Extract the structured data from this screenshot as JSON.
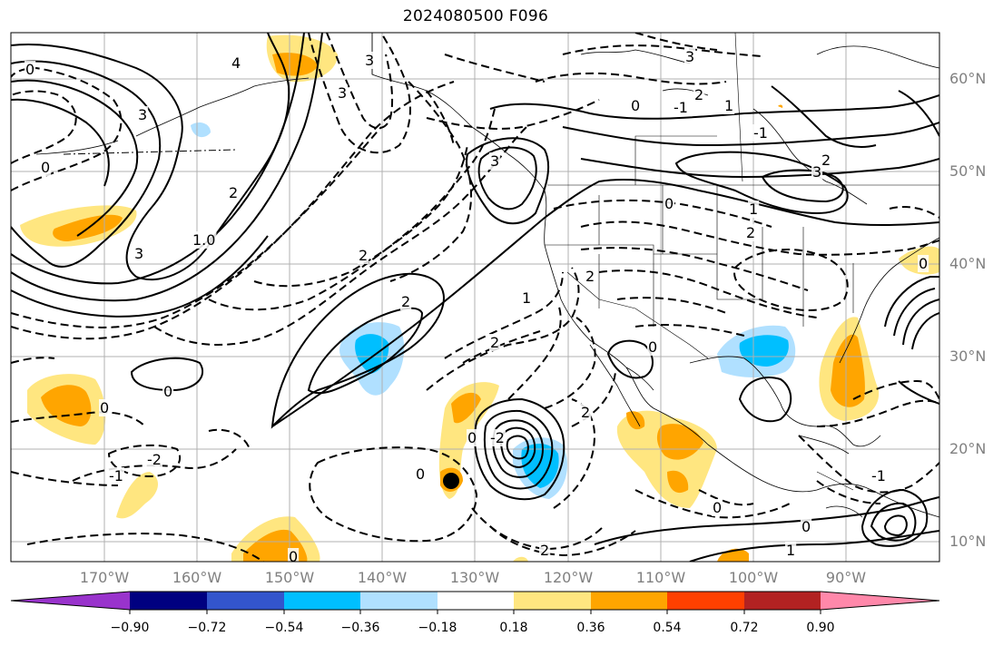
{
  "title": "2024080500 F096",
  "lat_labels": [
    "60°N",
    "50°N",
    "40°N",
    "30°N",
    "20°N",
    "10°N"
  ],
  "lon_labels": [
    "170°W",
    "160°W",
    "150°W",
    "140°W",
    "130°W",
    "120°W",
    "110°W",
    "100°W",
    "90°W"
  ],
  "colorbar": {
    "tick_labels": [
      "−0.90",
      "−0.72",
      "−0.54",
      "−0.36",
      "−0.18",
      "0.18",
      "0.36",
      "0.54",
      "0.72",
      "0.90"
    ],
    "colors": [
      "#9933cc",
      "#000080",
      "#3355cc",
      "#00bfff",
      "#b0e0ff",
      "#ffffff",
      "#ffe680",
      "#ffa500",
      "#ff4000",
      "#b22222",
      "#ff88aa"
    ]
  },
  "contour_labels": [
    "0",
    "3",
    "4",
    "0",
    "2",
    "1.0",
    "3",
    "0",
    "2",
    "2",
    "3",
    "1",
    "2",
    "3",
    "3",
    "0",
    "-1",
    "1",
    "2",
    "3",
    "3",
    "0",
    "1",
    "2",
    "0",
    "0",
    "2",
    "0",
    "-2",
    "-1",
    "2",
    "0",
    "-2",
    "2",
    "-1",
    "2",
    "0",
    "0",
    "-1",
    "0",
    "1",
    "0"
  ],
  "marker": "black-dot"
}
